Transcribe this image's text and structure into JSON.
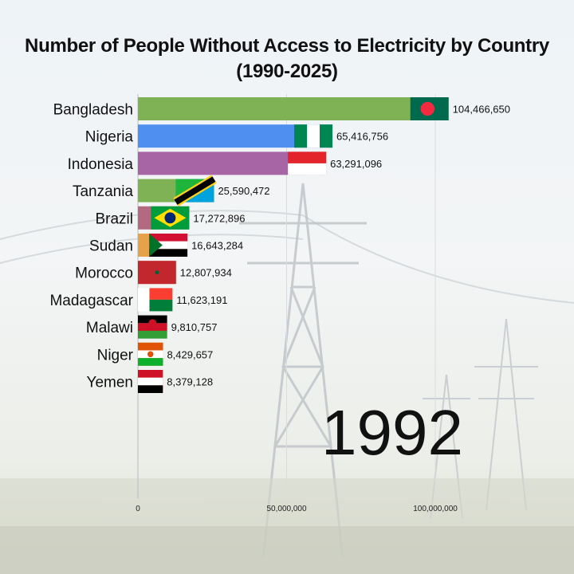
{
  "title_line1": "Number of People Without Access to Electricity by Country",
  "title_line2": "(1990-2025)",
  "chart_data": {
    "type": "bar",
    "orientation": "horizontal",
    "categories": [
      "Bangladesh",
      "Nigeria",
      "Indonesia",
      "Tanzania",
      "Brazil",
      "Sudan",
      "Morocco",
      "Madagascar",
      "Malawi",
      "Niger",
      "Yemen"
    ],
    "values": [
      104466650,
      65416756,
      63291096,
      25590472,
      17272896,
      16643284,
      12807934,
      11623191,
      9810757,
      8429657,
      8379128
    ],
    "value_labels": [
      "104,466,650",
      "65,416,756",
      "63,291,096",
      "25,590,472",
      "17,272,896",
      "16,643,284",
      "12,807,934",
      "11,623,191",
      "9,810,757",
      "8,429,657",
      "8,379,128"
    ],
    "bar_colors": [
      "#7fb254",
      "#4f8ff0",
      "#a865a6",
      "#7fb254",
      "#b36a80",
      "#e5a24a",
      "#e8b08a",
      "#f1f1f1",
      "#3f9a48",
      "#f29a47",
      "#e05a5a"
    ],
    "flags": [
      "bangladesh",
      "nigeria",
      "indonesia",
      "tanzania",
      "brazil",
      "sudan",
      "morocco",
      "madagascar",
      "malawi",
      "niger",
      "yemen"
    ],
    "xlim": [
      0,
      115000000
    ],
    "xticks": [
      0,
      50000000,
      100000000
    ],
    "xtick_labels": [
      "0",
      "50,000,000",
      "100,000,000"
    ],
    "grid": true,
    "year": "1992"
  }
}
